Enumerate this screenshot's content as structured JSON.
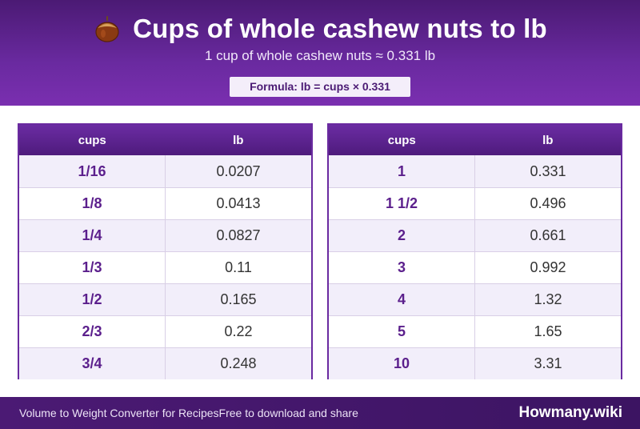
{
  "header": {
    "title": "Cups of whole cashew nuts to lb",
    "icon": "nut-icon",
    "subtitle": "1 cup of whole cashew nuts ≈ 0.331 lb",
    "formula": "Formula: lb = cups × 0.331"
  },
  "table_left": {
    "col1": "cups",
    "col2": "lb",
    "rows": [
      {
        "cups": "1/16",
        "lb": "0.0207"
      },
      {
        "cups": "1/8",
        "lb": "0.0413"
      },
      {
        "cups": "1/4",
        "lb": "0.0827"
      },
      {
        "cups": "1/3",
        "lb": "0.11"
      },
      {
        "cups": "1/2",
        "lb": "0.165"
      },
      {
        "cups": "2/3",
        "lb": "0.22"
      },
      {
        "cups": "3/4",
        "lb": "0.248"
      }
    ]
  },
  "table_right": {
    "col1": "cups",
    "col2": "lb",
    "rows": [
      {
        "cups": "1",
        "lb": "0.331"
      },
      {
        "cups": "1 1/2",
        "lb": "0.496"
      },
      {
        "cups": "2",
        "lb": "0.661"
      },
      {
        "cups": "3",
        "lb": "0.992"
      },
      {
        "cups": "4",
        "lb": "1.32"
      },
      {
        "cups": "5",
        "lb": "1.65"
      },
      {
        "cups": "10",
        "lb": "3.31"
      }
    ]
  },
  "footer": {
    "left_text": "Volume to Weight Converter for RecipesFree to download and share",
    "brand": "Howmany.wiki"
  },
  "colors": {
    "header_purple": "#5a2190",
    "accent_purple": "#6a2aa0",
    "row_tint": "#f2eefa"
  }
}
